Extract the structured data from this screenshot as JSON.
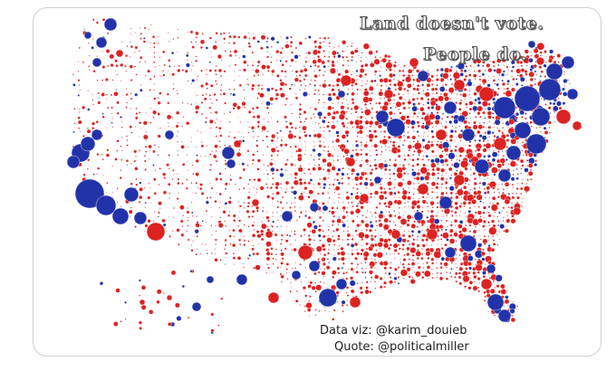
{
  "title": {
    "line1": "Land doesn't vote.",
    "line2": "People do."
  },
  "credits": {
    "data_viz": "Data viz: @karim_douieb",
    "quote": "Quote: @politicalmiller"
  },
  "colors": {
    "red": "#dd2222",
    "blue": "#2233aa",
    "border": "#cfcfcf"
  },
  "legend": {
    "red_meaning": "",
    "blue_meaning": ""
  }
}
